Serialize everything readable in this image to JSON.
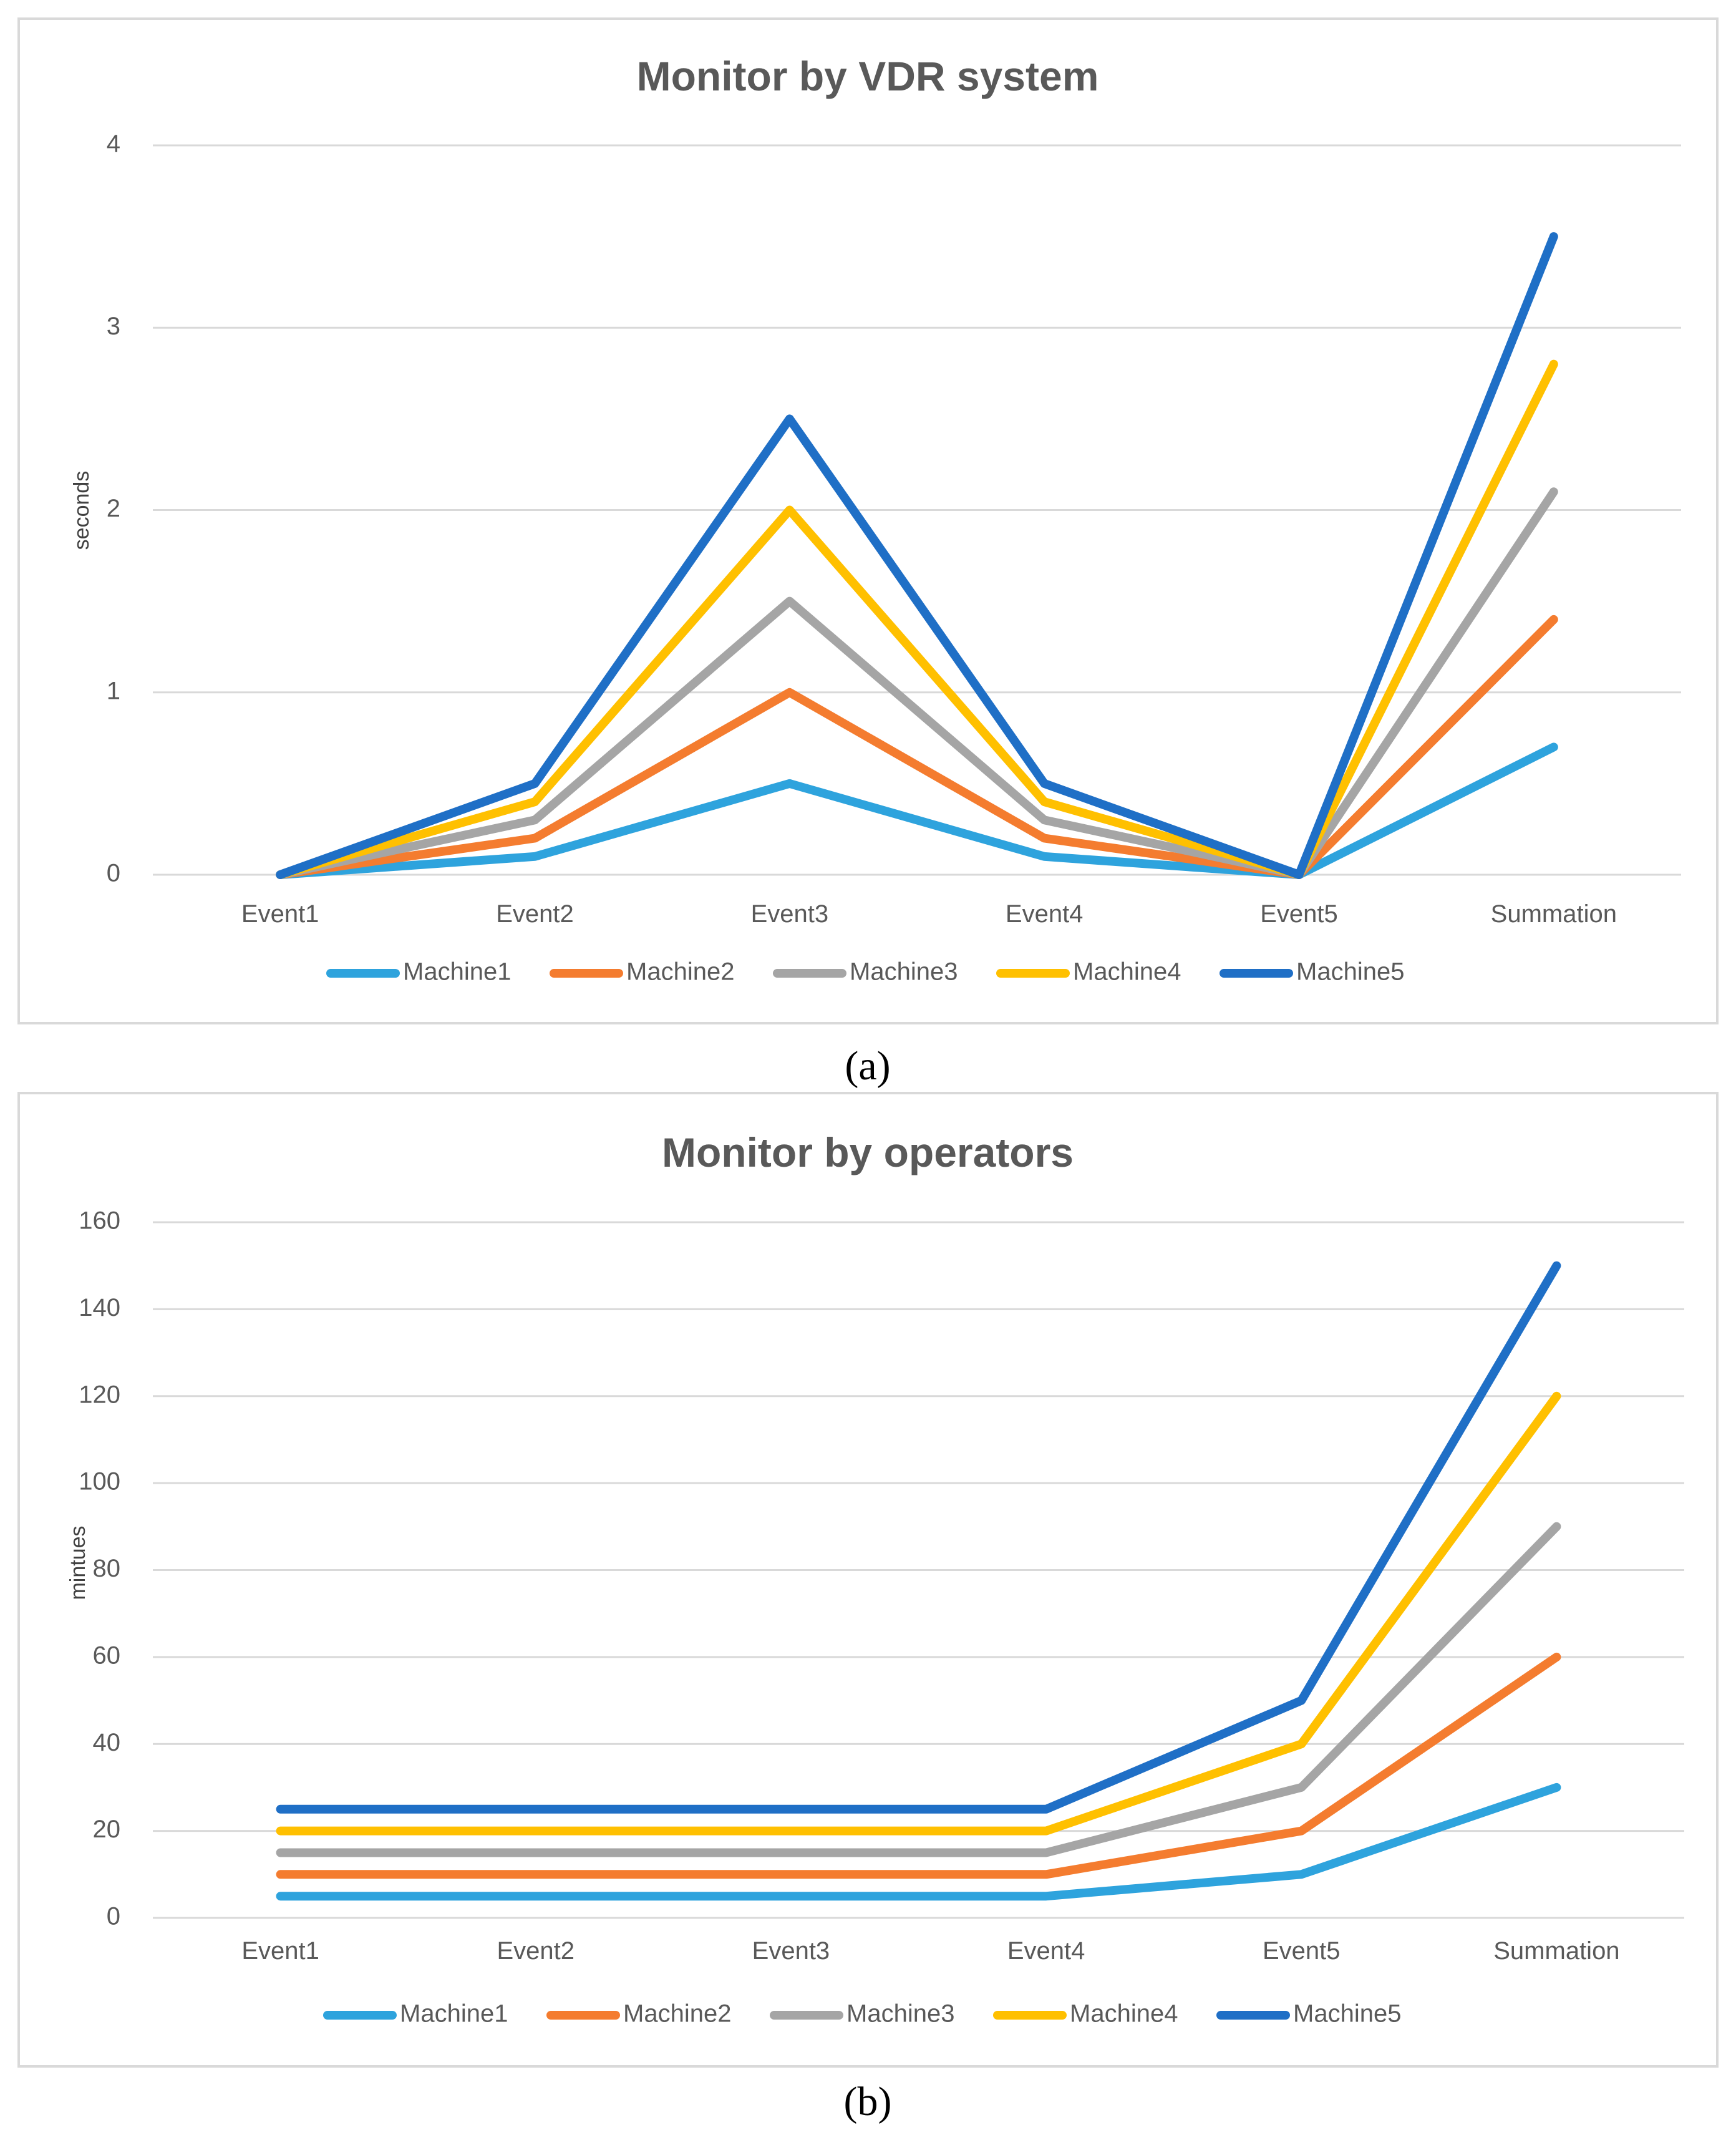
{
  "chart_data": [
    {
      "type": "line",
      "title": "Monitor by VDR system",
      "xlabel": "",
      "ylabel": "seconds",
      "ylim": [
        0,
        4
      ],
      "yticks": [
        "0",
        "1",
        "2",
        "3",
        "4"
      ],
      "categories": [
        "Event1",
        "Event2",
        "Event3",
        "Event4",
        "Event5",
        "Summation"
      ],
      "series": [
        {
          "name": "Machine1",
          "color": "#2EA3DD",
          "values": [
            0,
            0.1,
            0.5,
            0.1,
            0,
            0.7
          ]
        },
        {
          "name": "Machine2",
          "color": "#F47C2F",
          "values": [
            0,
            0.2,
            1.0,
            0.2,
            0,
            1.4
          ]
        },
        {
          "name": "Machine3",
          "color": "#A5A5A5",
          "values": [
            0,
            0.3,
            1.5,
            0.3,
            0,
            2.1
          ]
        },
        {
          "name": "Machine4",
          "color": "#FFC000",
          "values": [
            0,
            0.4,
            2.0,
            0.4,
            0,
            2.8
          ]
        },
        {
          "name": "Machine5",
          "color": "#1F6FC6",
          "values": [
            0,
            0.5,
            2.5,
            0.5,
            0,
            3.5
          ]
        }
      ],
      "legend": "bottom",
      "caption": "(a)"
    },
    {
      "type": "line",
      "title": "Monitor by operators",
      "xlabel": "",
      "ylabel": "mintues",
      "ylim": [
        0,
        160
      ],
      "yticks": [
        "0",
        "20",
        "40",
        "60",
        "80",
        "100",
        "120",
        "140",
        "160"
      ],
      "categories": [
        "Event1",
        "Event2",
        "Event3",
        "Event4",
        "Event5",
        "Summation"
      ],
      "series": [
        {
          "name": "Machine1",
          "color": "#2EA3DD",
          "values": [
            5,
            5,
            5,
            5,
            10,
            30
          ]
        },
        {
          "name": "Machine2",
          "color": "#F47C2F",
          "values": [
            10,
            10,
            10,
            10,
            20,
            60
          ]
        },
        {
          "name": "Machine3",
          "color": "#A5A5A5",
          "values": [
            15,
            15,
            15,
            15,
            30,
            90
          ]
        },
        {
          "name": "Machine4",
          "color": "#FFC000",
          "values": [
            20,
            20,
            20,
            20,
            40,
            120
          ]
        },
        {
          "name": "Machine5",
          "color": "#1F6FC6",
          "values": [
            25,
            25,
            25,
            25,
            50,
            150
          ]
        }
      ],
      "legend": "bottom",
      "caption": "(b)"
    }
  ]
}
